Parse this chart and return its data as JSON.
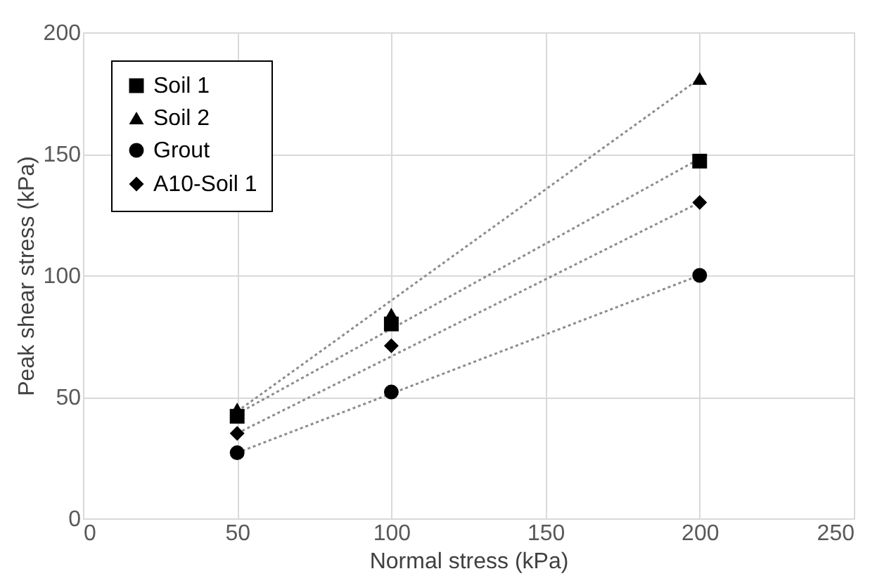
{
  "chart_data": {
    "type": "scatter",
    "xlabel": "Normal stress (kPa)",
    "ylabel": "Peak shear stress (kPa)",
    "xlim": [
      0,
      250
    ],
    "xticks": [
      0,
      50,
      100,
      150,
      200,
      250
    ],
    "ylim": [
      0,
      200
    ],
    "yticks": [
      0,
      50,
      100,
      150,
      200
    ],
    "grid": true,
    "legend": "top left",
    "series": [
      {
        "name": "Soil 1",
        "color": "#000000",
        "marker": "square",
        "x": [
          50,
          100,
          200
        ],
        "values": [
          42,
          80,
          147
        ]
      },
      {
        "name": "Soil 2",
        "color": "#000000",
        "marker": "triangle",
        "x": [
          50,
          100,
          200
        ],
        "values": [
          45,
          84,
          181
        ]
      },
      {
        "name": "Grout",
        "color": "#000000",
        "marker": "circle",
        "x": [
          50,
          100,
          200
        ],
        "values": [
          27,
          52,
          100
        ]
      },
      {
        "name": "A10-Soil 1",
        "color": "#000000",
        "marker": "diamond",
        "x": [
          50,
          100,
          200
        ],
        "values": [
          35,
          71,
          130
        ]
      },
      {
        "type": "line",
        "color": "#8c8c8c",
        "line_style": "dotted",
        "x": [
          50,
          200
        ],
        "values": [
          43,
          148
        ]
      },
      {
        "type": "line",
        "color": "#8c8c8c",
        "line_style": "dotted",
        "x": [
          50,
          200
        ],
        "values": [
          44,
          181
        ]
      },
      {
        "type": "line",
        "color": "#8c8c8c",
        "line_style": "dotted",
        "x": [
          50,
          200
        ],
        "values": [
          27,
          100
        ]
      },
      {
        "type": "line",
        "color": "#8c8c8c",
        "line_style": "dotted",
        "x": [
          50,
          200
        ],
        "values": [
          35,
          130
        ]
      }
    ]
  }
}
